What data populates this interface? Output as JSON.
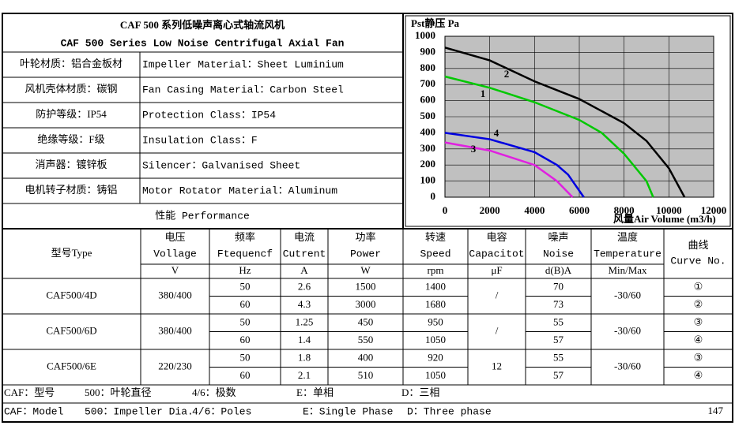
{
  "header": {
    "title_cn": "CAF 500 系列低噪声离心式轴流风机",
    "title_en": "CAF 500 Series Low Noise Centrifugal Axial Fan"
  },
  "specs": [
    [
      "叶轮材质：铝合金板材",
      "Impeller Material：Sheet Luminium"
    ],
    [
      "风机壳体材质：碳钢",
      "Fan Casing Material：Carbon Steel"
    ],
    [
      "防护等级：IP54",
      "Protection Class：IP54"
    ],
    [
      "绝缘等级：F级",
      "Insulation Class：F"
    ],
    [
      "消声器：镀锌板",
      "Silencer：Galvanised Sheet"
    ],
    [
      "电机转子材质：铸铝",
      "Motor Rotator Material：Aluminum"
    ]
  ],
  "performance_label": "性能  Performance",
  "chart": {
    "type": "line",
    "y_label": "Pst静压 Pa",
    "x_label": "风量Air Volume  (m3/h)",
    "xlim": [
      0,
      12000
    ],
    "xticks": [
      0,
      2000,
      4000,
      6000,
      8000,
      10000,
      12000
    ],
    "ylim": [
      0,
      1000
    ],
    "yticks": [
      0,
      100,
      200,
      300,
      400,
      500,
      600,
      700,
      800,
      900,
      1000
    ],
    "grid": true,
    "series": [
      {
        "name": "1",
        "color": "#00c800",
        "x": [
          0,
          2000,
          4000,
          6000,
          7000,
          8000,
          9000,
          9300
        ],
        "values": [
          750,
          680,
          590,
          480,
          400,
          270,
          100,
          0
        ]
      },
      {
        "name": "2",
        "color": "#000000",
        "x": [
          0,
          2000,
          4000,
          6000,
          8000,
          9000,
          10000,
          10700
        ],
        "values": [
          930,
          850,
          720,
          610,
          460,
          350,
          180,
          0
        ]
      },
      {
        "name": "3",
        "color": "#e020e0",
        "x": [
          0,
          2000,
          4000,
          5000,
          5700
        ],
        "values": [
          340,
          290,
          200,
          100,
          0
        ]
      },
      {
        "name": "4",
        "color": "#0000e0",
        "x": [
          0,
          2000,
          4000,
          5000,
          5500,
          6200
        ],
        "values": [
          400,
          360,
          280,
          200,
          140,
          0
        ]
      }
    ]
  },
  "table": {
    "columns": [
      {
        "label": "型号Type"
      },
      {
        "cn": "电压",
        "en": "Vollage",
        "unit": "V"
      },
      {
        "cn": "频率",
        "en": "Ftequencf",
        "unit": "Hz"
      },
      {
        "cn": "电流",
        "en": "Cutrent",
        "unit": "A"
      },
      {
        "cn": "功率",
        "en": "Power",
        "unit": "W"
      },
      {
        "cn": "转速",
        "en": "Speed",
        "unit": "rpm"
      },
      {
        "cn": "电容",
        "en": "Capacitot",
        "unit": "μF"
      },
      {
        "cn": "噪声",
        "en": "Noise",
        "unit": "d(B)A"
      },
      {
        "cn": "温度",
        "en": "Temperature",
        "unit": "Min/Max"
      },
      {
        "cn": "曲线",
        "en": "Curve No."
      }
    ],
    "models": [
      {
        "type": "CAF500/4D",
        "voltage": "380/400",
        "capacitor": "/",
        "temperature": "-30/60",
        "rows": [
          {
            "freq": 50,
            "current": 2.6,
            "power": 1500,
            "speed": 1400,
            "noise": 70,
            "curve": "①"
          },
          {
            "freq": 60,
            "current": 4.3,
            "power": 3000,
            "speed": 1680,
            "noise": 73,
            "curve": "②"
          }
        ]
      },
      {
        "type": "CAF500/6D",
        "voltage": "380/400",
        "capacitor": "/",
        "temperature": "-30/60",
        "rows": [
          {
            "freq": 50,
            "current": 1.25,
            "power": 450,
            "speed": 950,
            "noise": 55,
            "curve": "③"
          },
          {
            "freq": 60,
            "current": 1.4,
            "power": 550,
            "speed": 1050,
            "noise": 57,
            "curve": "④"
          }
        ]
      },
      {
        "type": "CAF500/6E",
        "voltage": "220/230",
        "capacitor": 12,
        "temperature": "-30/60",
        "rows": [
          {
            "freq": 50,
            "current": 1.8,
            "power": 400,
            "speed": 920,
            "noise": 55,
            "curve": "③"
          },
          {
            "freq": 60,
            "current": 2.1,
            "power": 510,
            "speed": 1050,
            "noise": 57,
            "curve": "④"
          }
        ]
      }
    ]
  },
  "footer": {
    "cn": [
      "CAF：型号",
      "500：叶轮直径",
      "4/6：极数",
      "E：单相",
      "D：三相"
    ],
    "en": [
      "CAF：Model",
      "500：Impeller Dia.",
      "4/6：Poles",
      "E：Single Phase",
      "D：Three phase"
    ],
    "page": 147
  }
}
